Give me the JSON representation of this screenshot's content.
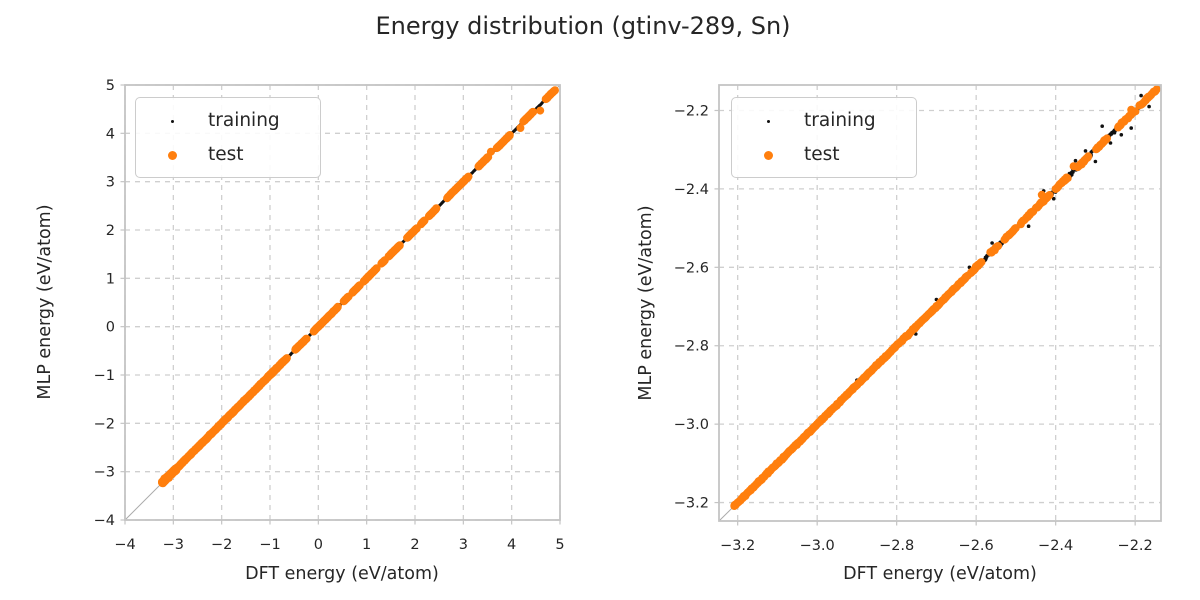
{
  "title": "Energy distribution (gtinv-289, Sn)",
  "palette": {
    "training": "#111111",
    "test": "#ff7f0e",
    "grid": "#cfcfcf",
    "spine": "#c4c4c4",
    "text": "#262626",
    "identity_line": "#ababab",
    "background": "#ffffff"
  },
  "chart_data": [
    {
      "type": "scatter",
      "panel": "left",
      "xlabel": "DFT energy (eV/atom)",
      "ylabel": "MLP energy (eV/atom)",
      "xlim": [
        -4,
        5
      ],
      "ylim": [
        -4,
        5
      ],
      "xticks": {
        "values": [
          -4,
          -3,
          -2,
          -1,
          0,
          1,
          2,
          3,
          4,
          5
        ],
        "labels": [
          "−4",
          "−3",
          "−2",
          "−1",
          "0",
          "1",
          "2",
          "3",
          "4",
          "5"
        ]
      },
      "yticks": {
        "values": [
          -4,
          -3,
          -2,
          -1,
          0,
          1,
          2,
          3,
          4,
          5
        ],
        "labels": [
          "−4",
          "−3",
          "−2",
          "−1",
          "0",
          "1",
          "2",
          "3",
          "4",
          "5"
        ]
      },
      "grid": true,
      "grid_style": "dashed",
      "legend_position": "upper left",
      "identity_line": {
        "from": -4,
        "to": 5
      },
      "series": [
        {
          "name": "training",
          "color": "#111111",
          "marker_radius": 1.5,
          "seed": 11,
          "diagonal_segments": [
            {
              "range": [
                -3.23,
                4.88
              ],
              "points": 540,
              "jitter": 0.004
            }
          ],
          "points": []
        },
        {
          "name": "test",
          "color": "#ff7f0e",
          "marker_radius": 4,
          "seed": 23,
          "diagonal_segments": [
            {
              "range": [
                -3.23,
                -2.95
              ],
              "points": 150,
              "jitter": 0.028
            },
            {
              "range": [
                -2.95,
                -0.65
              ],
              "points": 430,
              "jitter": 0.012
            },
            {
              "range": [
                -0.48,
                -0.24
              ],
              "points": 30,
              "jitter": 0.007
            },
            {
              "range": [
                -0.1,
                0.41
              ],
              "points": 55,
              "jitter": 0.007
            },
            {
              "range": [
                0.52,
                0.63
              ],
              "points": 12,
              "jitter": 0.006
            },
            {
              "range": [
                0.7,
                0.86
              ],
              "points": 18,
              "jitter": 0.006
            },
            {
              "range": [
                0.93,
                1.21
              ],
              "points": 30,
              "jitter": 0.007
            },
            {
              "range": [
                1.3,
                1.38
              ],
              "points": 9,
              "jitter": 0.006
            },
            {
              "range": [
                1.45,
                1.69
              ],
              "points": 26,
              "jitter": 0.007
            },
            {
              "range": [
                1.83,
                2.04
              ],
              "points": 24,
              "jitter": 0.007
            },
            {
              "range": [
                2.12,
                2.2
              ],
              "points": 9,
              "jitter": 0.006
            },
            {
              "range": [
                2.28,
                2.45
              ],
              "points": 19,
              "jitter": 0.007
            },
            {
              "range": [
                2.66,
                3.11
              ],
              "points": 46,
              "jitter": 0.008
            },
            {
              "range": [
                3.31,
                3.52
              ],
              "points": 23,
              "jitter": 0.007
            },
            {
              "range": [
                3.69,
                3.97
              ],
              "points": 28,
              "jitter": 0.008
            },
            {
              "range": [
                4.24,
                4.45
              ],
              "points": 22,
              "jitter": 0.009
            },
            {
              "range": [
                4.7,
                4.9
              ],
              "points": 22,
              "jitter": 0.008
            }
          ],
          "points": [
            [
              4.59,
              4.47
            ],
            [
              4.18,
              4.11
            ],
            [
              3.57,
              3.62
            ]
          ]
        }
      ]
    },
    {
      "type": "scatter",
      "panel": "right",
      "xlabel": "DFT energy (eV/atom)",
      "ylabel": "MLP energy (eV/atom)",
      "xlim": [
        -3.247,
        -2.135
      ],
      "ylim": [
        -3.247,
        -2.135
      ],
      "xticks": {
        "values": [
          -3.2,
          -3.0,
          -2.8,
          -2.6,
          -2.4,
          -2.2
        ],
        "labels": [
          "−3.2",
          "−3.0",
          "−2.8",
          "−2.6",
          "−2.4",
          "−2.2"
        ]
      },
      "yticks": {
        "values": [
          -3.2,
          -3.0,
          -2.8,
          -2.6,
          -2.4,
          -2.2
        ],
        "labels": [
          "−3.2",
          "−3.0",
          "−2.8",
          "−2.6",
          "−2.4",
          "−2.2"
        ]
      },
      "grid": true,
      "grid_style": "dashed",
      "legend_position": "upper left",
      "identity_line": {
        "from": -3.247,
        "to": -2.135
      },
      "series": [
        {
          "name": "training",
          "color": "#111111",
          "marker_radius": 1.8,
          "seed": 37,
          "diagonal_segments": [
            {
              "range": [
                -3.21,
                -2.62
              ],
              "points": 260,
              "jitter": 0.0025
            },
            {
              "range": [
                -2.62,
                -2.148
              ],
              "points": 300,
              "jitter": 0.006
            }
          ],
          "points": [
            [
              -2.165,
              -2.19
            ],
            [
              -2.185,
              -2.162
            ],
            [
              -2.21,
              -2.245
            ],
            [
              -2.235,
              -2.262
            ],
            [
              -2.262,
              -2.283
            ],
            [
              -2.283,
              -2.24
            ],
            [
              -2.3,
              -2.33
            ],
            [
              -2.325,
              -2.303
            ],
            [
              -2.35,
              -2.328
            ],
            [
              -2.405,
              -2.425
            ],
            [
              -2.43,
              -2.405
            ],
            [
              -2.468,
              -2.495
            ],
            [
              -2.56,
              -2.538
            ],
            [
              -2.617,
              -2.6
            ],
            [
              -2.7,
              -2.682
            ],
            [
              -2.752,
              -2.77
            ],
            [
              -2.9,
              -2.888
            ]
          ]
        },
        {
          "name": "test",
          "color": "#ff7f0e",
          "marker_radius": 4,
          "seed": 51,
          "diagonal_segments": [
            {
              "range": [
                -3.21,
                -2.62
              ],
              "points": 300,
              "jitter": 0.002
            },
            {
              "range": [
                -2.615,
                -2.585
              ],
              "points": 16,
              "jitter": 0.003
            },
            {
              "range": [
                -2.565,
                -2.545
              ],
              "points": 12,
              "jitter": 0.003
            },
            {
              "range": [
                -2.53,
                -2.5
              ],
              "points": 14,
              "jitter": 0.003
            },
            {
              "range": [
                -2.49,
                -2.455
              ],
              "points": 16,
              "jitter": 0.003
            },
            {
              "range": [
                -2.45,
                -2.415
              ],
              "points": 16,
              "jitter": 0.003
            },
            {
              "range": [
                -2.4,
                -2.37
              ],
              "points": 14,
              "jitter": 0.003
            },
            {
              "range": [
                -2.345,
                -2.315
              ],
              "points": 14,
              "jitter": 0.003
            },
            {
              "range": [
                -2.3,
                -2.27
              ],
              "points": 14,
              "jitter": 0.003
            },
            {
              "range": [
                -2.245,
                -2.2
              ],
              "points": 18,
              "jitter": 0.003
            },
            {
              "range": [
                -2.19,
                -2.145
              ],
              "points": 18,
              "jitter": 0.003
            }
          ],
          "points": [
            [
              -2.435,
              -2.415
            ],
            [
              -2.355,
              -2.342
            ],
            [
              -2.21,
              -2.198
            ]
          ]
        }
      ]
    }
  ]
}
